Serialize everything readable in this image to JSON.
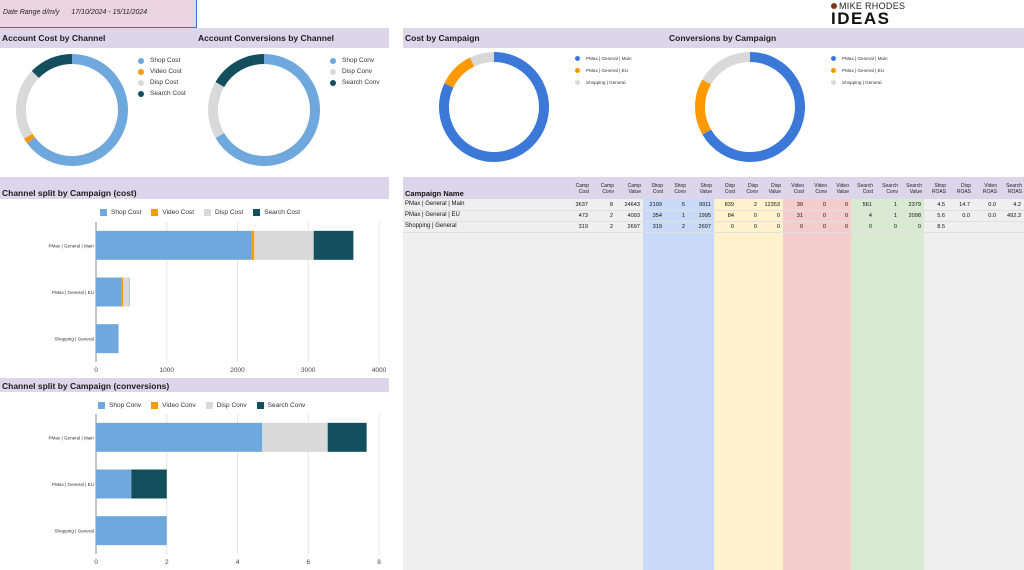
{
  "header": {
    "date_range_label": "Date Range d/m/y",
    "date_range_value": "17/10/2024 - 15/11/2024",
    "logo_small": "MIKE RHODES",
    "logo_big": "IDEAS"
  },
  "colors": {
    "shop": "#6fa8dc",
    "video": "#f39c12",
    "disp": "#d9d9d9",
    "search": "#134f5c",
    "campaign_main": "#3c78d8",
    "campaign_eu": "#ff9900",
    "campaign_shopping": "#d9d9d9",
    "header_band": "#ddd6ea"
  },
  "panels": {
    "account_cost": {
      "title": "Account Cost by Channel",
      "legend": [
        "Shop Cost",
        "Video Cost",
        "Disp Cost",
        "Search Cost"
      ]
    },
    "account_conv": {
      "title": "Account Conversions by Channel",
      "legend": [
        "Shop Conv",
        "Disp Conv",
        "Search Conv"
      ]
    },
    "cost_by_campaign": {
      "title": "Cost by Campaign",
      "legend": [
        "PMax | General | Main",
        "PMax | General | EU",
        "Shopping | General"
      ]
    },
    "conv_by_campaign": {
      "title": "Conversions by Campaign",
      "legend": [
        "PMax | General | Main",
        "PMax | General | EU",
        "Shopping | General"
      ]
    },
    "split_cost": {
      "title": "Channel split by Campaign (cost)",
      "legend": [
        "Shop Cost",
        "Video Cost",
        "Disp Cost",
        "Search Cost"
      ]
    },
    "split_conv": {
      "title": "Channel split by Campaign (conversions)",
      "legend": [
        "Shop Conv",
        "Video Conv",
        "Disp Conv",
        "Search Conv"
      ]
    }
  },
  "chart_data": [
    {
      "id": "account_cost",
      "type": "pie",
      "labels": [
        "Shop Cost",
        "Video Cost",
        "Disp Cost",
        "Search Cost"
      ],
      "values": [
        2872,
        70,
        923,
        565
      ]
    },
    {
      "id": "account_conv",
      "type": "pie",
      "labels": [
        "Shop Conv",
        "Disp Conv",
        "Search Conv"
      ],
      "values": [
        8,
        2,
        2
      ]
    },
    {
      "id": "cost_by_campaign",
      "type": "pie",
      "labels": [
        "PMax | General | Main",
        "PMax | General | EU",
        "Shopping | General"
      ],
      "values": [
        3637,
        473,
        319
      ]
    },
    {
      "id": "conv_by_campaign",
      "type": "pie",
      "labels": [
        "PMax | General | Main",
        "PMax | General | EU",
        "Shopping | General"
      ],
      "values": [
        8,
        2,
        2
      ]
    },
    {
      "id": "split_cost",
      "type": "bar",
      "orientation": "horizontal",
      "stacked": true,
      "categories": [
        "PMax | General | Main",
        "PMax | General | EU",
        "Shopping | General"
      ],
      "series": [
        {
          "name": "Shop Cost",
          "values": [
            2199,
            354,
            319
          ]
        },
        {
          "name": "Video Cost",
          "values": [
            39,
            31,
            0
          ]
        },
        {
          "name": "Disp Cost",
          "values": [
            839,
            84,
            0
          ]
        },
        {
          "name": "Search Cost",
          "values": [
            561,
            4,
            0
          ]
        }
      ],
      "xlim": [
        0,
        4000
      ],
      "xticks": [
        "0",
        "1000",
        "2000",
        "3000",
        "4000"
      ]
    },
    {
      "id": "split_conv",
      "type": "bar",
      "orientation": "horizontal",
      "stacked": true,
      "categories": [
        "PMax | General | Main",
        "PMax | General | EU",
        "Shopping | General"
      ],
      "series": [
        {
          "name": "Shop Conv",
          "values": [
            4.7,
            1,
            2
          ]
        },
        {
          "name": "Video Conv",
          "values": [
            0,
            0,
            0
          ]
        },
        {
          "name": "Disp Conv",
          "values": [
            1.85,
            0,
            0
          ]
        },
        {
          "name": "Search Conv",
          "values": [
            1.1,
            1,
            0
          ]
        }
      ],
      "xlim": [
        0,
        8
      ],
      "xticks": [
        "0",
        "2",
        "4",
        "6",
        "8"
      ]
    }
  ],
  "table": {
    "name_header": "Campaign Name",
    "columns": [
      [
        "Camp",
        "Cost"
      ],
      [
        "Camp",
        "Conv"
      ],
      [
        "Camp",
        "Value"
      ],
      [
        "Shop",
        "Cost"
      ],
      [
        "Shop",
        "Conv"
      ],
      [
        "Shop",
        "Value"
      ],
      [
        "Disp",
        "Cost"
      ],
      [
        "Disp",
        "Conv"
      ],
      [
        "Disp",
        "Value"
      ],
      [
        "Video",
        "Cost"
      ],
      [
        "Video",
        "Conv"
      ],
      [
        "Video",
        "Value"
      ],
      [
        "Search",
        "Cost"
      ],
      [
        "Search",
        "Conv"
      ],
      [
        "Search",
        "Value"
      ],
      [
        "Shop",
        "ROAS"
      ],
      [
        "Disp",
        "ROAS"
      ],
      [
        "Video",
        "ROAS"
      ],
      [
        "Search",
        "ROAS"
      ]
    ],
    "rows": [
      {
        "name": "PMax | General | Main",
        "cells": [
          "3637",
          "8",
          "24643",
          "2199",
          "5",
          "9911",
          "839",
          "2",
          "12353",
          "39",
          "0",
          "0",
          "561",
          "1",
          "2379",
          "4.5",
          "14.7",
          "0.0",
          "4.2"
        ]
      },
      {
        "name": "PMax | General | EU",
        "cells": [
          "473",
          "2",
          "4093",
          "354",
          "1",
          "1995",
          "84",
          "0",
          "0",
          "31",
          "0",
          "0",
          "4",
          "1",
          "2098",
          "5.6",
          "0.0",
          "0.0",
          "492.3"
        ]
      },
      {
        "name": "Shopping | General",
        "cells": [
          "319",
          "2",
          "2697",
          "319",
          "2",
          "2697",
          "0",
          "0",
          "0",
          "0",
          "0",
          "0",
          "0",
          "0",
          "0",
          "8.5",
          "",
          "",
          ""
        ]
      }
    ]
  }
}
